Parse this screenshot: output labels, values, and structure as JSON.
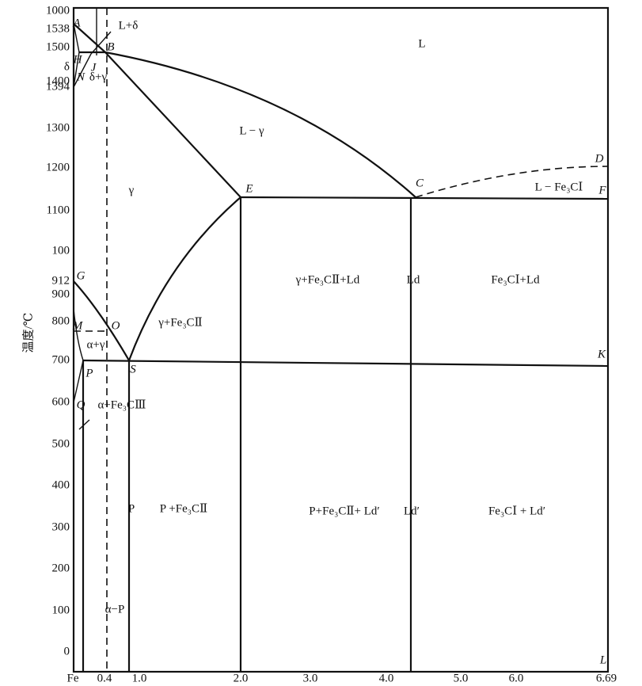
{
  "y_axis": {
    "title": "温度/℃",
    "ticks": [
      "1000",
      "1538",
      "1500",
      "δ",
      "1400",
      "1394",
      "1300",
      "1200",
      "1100",
      "100",
      "912",
      "900",
      "800",
      "700",
      "600",
      "500",
      "400",
      "300",
      "200",
      "100",
      "0"
    ]
  },
  "x_axis": {
    "ticks": [
      "Fe",
      "0.4",
      "1.0",
      "2.0",
      "3.0",
      "4.0",
      "5.0",
      "6.0",
      "6.69"
    ]
  },
  "points": [
    "A",
    "B",
    "H",
    "J",
    "N",
    "E",
    "C",
    "D",
    "F",
    "G",
    "M",
    "O",
    "S",
    "P",
    "Q",
    "K",
    "L"
  ],
  "regions": [
    "L",
    "L+δ",
    "δ+γ",
    "L − γ",
    "γ",
    "L − Fe₃CⅠ",
    "γ+Fe₃CⅡ+Ld",
    "Ld",
    "Fe₃CⅠ+Ld",
    "γ+Fe₃CⅡ",
    "α+γ",
    "α+Fe₃CⅢ",
    "P",
    "P +Fe₃CⅡ",
    "P+Fe₃CⅡ+ Ld′",
    "Ld′",
    "Fe₃CⅠ + Ld′",
    "α−P"
  ]
}
